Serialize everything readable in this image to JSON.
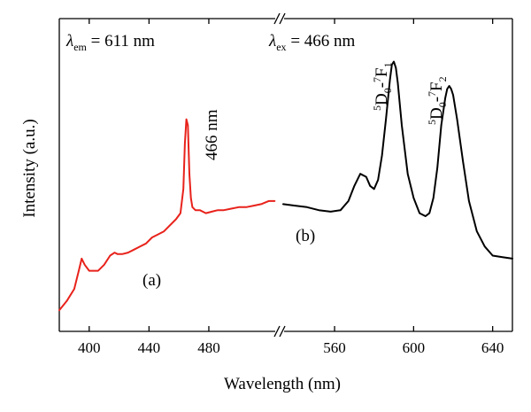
{
  "chart_data": {
    "type": "line",
    "xlabel": "Wavelength (nm)",
    "ylabel": "Intensity (a.u.)",
    "y_ticks_shown": false,
    "x_axis_broken": true,
    "panels": [
      {
        "id": "left",
        "xlim": [
          380,
          525
        ],
        "ticks": [
          400,
          440,
          480
        ],
        "ylim": [
          0,
          1
        ],
        "annotation_left": {
          "symbol": "λ",
          "subscript": "em",
          "text": " = 611 nm"
        },
        "series": [
          {
            "label": "(a)",
            "color": "#e8221b",
            "peak_label": "466 nm",
            "x": [
              380,
              385,
              390,
              393,
              395,
              397,
              400,
              403,
              406,
              410,
              414,
              417,
              419,
              422,
              426,
              430,
              434,
              438,
              442,
              446,
              450,
              454,
              458,
              461,
              463,
              464,
              465,
              466,
              467,
              468,
              469,
              471,
              474,
              478,
              482,
              486,
              490,
              495,
              500,
              505,
              510,
              515,
              520,
              524
            ],
            "y": [
              0.07,
              0.1,
              0.14,
              0.2,
              0.24,
              0.22,
              0.2,
              0.2,
              0.2,
              0.22,
              0.25,
              0.26,
              0.255,
              0.255,
              0.26,
              0.27,
              0.28,
              0.29,
              0.31,
              0.32,
              0.33,
              0.35,
              0.37,
              0.39,
              0.47,
              0.62,
              0.7,
              0.68,
              0.52,
              0.44,
              0.41,
              0.4,
              0.4,
              0.39,
              0.395,
              0.4,
              0.4,
              0.405,
              0.41,
              0.41,
              0.415,
              0.42,
              0.43,
              0.43
            ]
          }
        ]
      },
      {
        "id": "right",
        "xlim": [
          534,
          650
        ],
        "ticks": [
          560,
          600,
          640
        ],
        "ylim": [
          0,
          1
        ],
        "annotation_right": {
          "symbol": "λ",
          "subscript": "ex",
          "text": " = 466 nm"
        },
        "series": [
          {
            "label": "(b)",
            "color": "#000000",
            "peaks": [
              {
                "x": 590,
                "label_sup": "5",
                "label_main": "D",
                "label_sub": "0",
                "label_mid": "-",
                "label_sup2": "7",
                "label_main2": "F",
                "label_sub2": "1"
              },
              {
                "x": 618,
                "label_sup": "5",
                "label_main": "D",
                "label_sub": "0",
                "label_mid": "-",
                "label_sup2": "7",
                "label_main2": "F",
                "label_sub2": "2"
              }
            ],
            "x": [
              534,
              540,
              546,
              552,
              558,
              563,
              567,
              570,
              573,
              576,
              578,
              580,
              582,
              584,
              586,
              588,
              589,
              590,
              591,
              592,
              594,
              597,
              600,
              603,
              606,
              608,
              610,
              612,
              614,
              616,
              617,
              618,
              619,
              620,
              622,
              625,
              628,
              632,
              636,
              640,
              645,
              650
            ],
            "y": [
              0.42,
              0.415,
              0.41,
              0.4,
              0.395,
              0.4,
              0.43,
              0.48,
              0.52,
              0.51,
              0.48,
              0.47,
              0.5,
              0.58,
              0.7,
              0.83,
              0.88,
              0.89,
              0.87,
              0.82,
              0.68,
              0.52,
              0.44,
              0.39,
              0.38,
              0.39,
              0.44,
              0.54,
              0.68,
              0.77,
              0.8,
              0.81,
              0.8,
              0.78,
              0.7,
              0.56,
              0.43,
              0.33,
              0.28,
              0.25,
              0.245,
              0.24
            ]
          }
        ]
      }
    ]
  }
}
